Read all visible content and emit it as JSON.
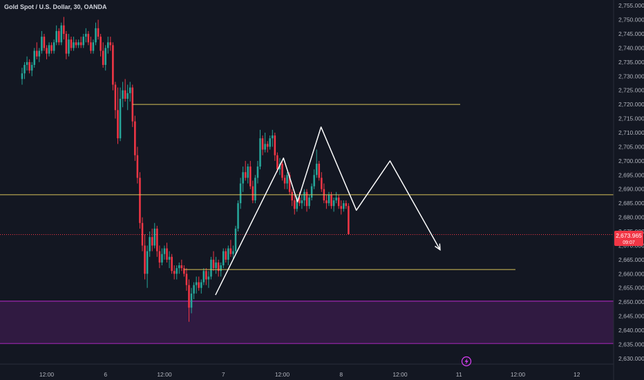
{
  "title": "Gold Spot / U.S. Dollar, 30, OANDA",
  "price_tag": {
    "price": "2,673.965",
    "countdown": "09:07"
  },
  "chart_data": {
    "type": "candlestick",
    "ylim": [
      2628,
      2757
    ],
    "y_ticks": [
      {
        "v": 2755,
        "label": "2,755.000"
      },
      {
        "v": 2750,
        "label": "2,750.000"
      },
      {
        "v": 2745,
        "label": "2,745.000"
      },
      {
        "v": 2740,
        "label": "2,740.000"
      },
      {
        "v": 2735,
        "label": "2,735.000"
      },
      {
        "v": 2730,
        "label": "2,730.000"
      },
      {
        "v": 2725,
        "label": "2,725.000"
      },
      {
        "v": 2720,
        "label": "2,720.000"
      },
      {
        "v": 2715,
        "label": "2,715.000"
      },
      {
        "v": 2710,
        "label": "2,710.000"
      },
      {
        "v": 2705,
        "label": "2,705.000"
      },
      {
        "v": 2700,
        "label": "2,700.000"
      },
      {
        "v": 2695,
        "label": "2,695.000"
      },
      {
        "v": 2690,
        "label": "2,690.000"
      },
      {
        "v": 2685,
        "label": "2,685.000"
      },
      {
        "v": 2680,
        "label": "2,680.000"
      },
      {
        "v": 2675,
        "label": "2,675.000"
      },
      {
        "v": 2670,
        "label": "2,670.000"
      },
      {
        "v": 2665,
        "label": "2,665.000"
      },
      {
        "v": 2660,
        "label": "2,660.000"
      },
      {
        "v": 2655,
        "label": "2,655.000"
      },
      {
        "v": 2650,
        "label": "2,650.000"
      },
      {
        "v": 2645,
        "label": "2,645.000"
      },
      {
        "v": 2640,
        "label": "2,640.000"
      },
      {
        "v": 2635,
        "label": "2,635.000"
      },
      {
        "v": 2630,
        "label": "2,630.000"
      }
    ],
    "x_ticks": [
      {
        "bar": 10,
        "label": "12:00"
      },
      {
        "bar": 34,
        "label": "6"
      },
      {
        "bar": 58,
        "label": "12:00"
      },
      {
        "bar": 82,
        "label": "7"
      },
      {
        "bar": 106,
        "label": "12:00"
      },
      {
        "bar": 130,
        "label": "8"
      },
      {
        "bar": 154,
        "label": "12:00"
      },
      {
        "bar": 178,
        "label": "11"
      },
      {
        "bar": 202,
        "label": "12:00"
      },
      {
        "bar": 226,
        "label": "12"
      }
    ],
    "x_range_bars": [
      -9,
      241
    ],
    "colors": {
      "up": "#26a69a",
      "down": "#f23645",
      "zone": "#9c27b0",
      "level": "#d8c35a",
      "pattern": "#ffffff",
      "current": "#f23645"
    },
    "candles": [
      [
        2729,
        2733,
        2727,
        2731
      ],
      [
        2731,
        2735,
        2729,
        2734
      ],
      [
        2734,
        2737,
        2732,
        2735
      ],
      [
        2735,
        2736,
        2731,
        2732
      ],
      [
        2732,
        2735,
        2730,
        2734
      ],
      [
        2734,
        2740,
        2733,
        2739
      ],
      [
        2739,
        2742,
        2736,
        2737
      ],
      [
        2737,
        2740,
        2735,
        2739
      ],
      [
        2739,
        2746,
        2738,
        2744
      ],
      [
        2744,
        2745,
        2739,
        2740
      ],
      [
        2740,
        2741,
        2736,
        2738
      ],
      [
        2738,
        2742,
        2737,
        2741
      ],
      [
        2741,
        2742,
        2738,
        2739
      ],
      [
        2739,
        2743,
        2738,
        2742
      ],
      [
        2742,
        2748,
        2741,
        2746
      ],
      [
        2746,
        2747,
        2741,
        2742
      ],
      [
        2742,
        2749,
        2741,
        2748
      ],
      [
        2748,
        2751,
        2743,
        2745
      ],
      [
        2745,
        2746,
        2736,
        2738
      ],
      [
        2738,
        2745,
        2737,
        2743
      ],
      [
        2743,
        2744,
        2739,
        2740
      ],
      [
        2740,
        2744,
        2739,
        2742
      ],
      [
        2742,
        2743,
        2740,
        2741
      ],
      [
        2741,
        2743,
        2740,
        2742
      ],
      [
        2742,
        2744,
        2740,
        2741
      ],
      [
        2741,
        2745,
        2740,
        2744
      ],
      [
        2744,
        2747,
        2742,
        2745
      ],
      [
        2745,
        2746,
        2741,
        2742
      ],
      [
        2742,
        2744,
        2738,
        2739
      ],
      [
        2739,
        2743,
        2738,
        2742
      ],
      [
        2742,
        2749,
        2741,
        2747
      ],
      [
        2747,
        2750,
        2743,
        2744
      ],
      [
        2744,
        2745,
        2737,
        2739
      ],
      [
        2739,
        2742,
        2733,
        2734
      ],
      [
        2734,
        2741,
        2732,
        2740
      ],
      [
        2740,
        2744,
        2738,
        2742
      ],
      [
        2742,
        2744,
        2739,
        2741
      ],
      [
        2741,
        2742,
        2725,
        2727
      ],
      [
        2727,
        2728,
        2715,
        2718
      ],
      [
        2718,
        2726,
        2706,
        2708
      ],
      [
        2708,
        2726,
        2707,
        2722
      ],
      [
        2722,
        2728,
        2719,
        2725
      ],
      [
        2725,
        2729,
        2721,
        2722
      ],
      [
        2722,
        2727,
        2718,
        2724
      ],
      [
        2724,
        2728,
        2721,
        2726
      ],
      [
        2726,
        2727,
        2712,
        2714
      ],
      [
        2714,
        2716,
        2700,
        2702
      ],
      [
        2702,
        2705,
        2692,
        2694
      ],
      [
        2694,
        2696,
        2676,
        2678
      ],
      [
        2678,
        2680,
        2668,
        2670
      ],
      [
        2670,
        2674,
        2658,
        2660
      ],
      [
        2660,
        2670,
        2655,
        2668
      ],
      [
        2668,
        2675,
        2666,
        2673
      ],
      [
        2673,
        2676,
        2668,
        2670
      ],
      [
        2670,
        2678,
        2669,
        2676
      ],
      [
        2676,
        2677,
        2666,
        2668
      ],
      [
        2668,
        2670,
        2662,
        2664
      ],
      [
        2664,
        2669,
        2663,
        2667
      ],
      [
        2667,
        2670,
        2665,
        2669
      ],
      [
        2669,
        2671,
        2664,
        2665
      ],
      [
        2665,
        2668,
        2662,
        2666
      ],
      [
        2666,
        2667,
        2660,
        2661
      ],
      [
        2661,
        2663,
        2658,
        2660
      ],
      [
        2660,
        2663,
        2658,
        2662
      ],
      [
        2662,
        2664,
        2660,
        2663
      ],
      [
        2663,
        2665,
        2661,
        2662
      ],
      [
        2662,
        2663,
        2659,
        2660
      ],
      [
        2660,
        2662,
        2654,
        2656
      ],
      [
        2656,
        2658,
        2643,
        2648
      ],
      [
        2648,
        2655,
        2646,
        2653
      ],
      [
        2653,
        2657,
        2651,
        2656
      ],
      [
        2656,
        2659,
        2653,
        2657
      ],
      [
        2657,
        2659,
        2654,
        2655
      ],
      [
        2655,
        2658,
        2653,
        2657
      ],
      [
        2657,
        2662,
        2656,
        2661
      ],
      [
        2661,
        2662,
        2656,
        2658
      ],
      [
        2658,
        2661,
        2655,
        2659
      ],
      [
        2659,
        2666,
        2658,
        2665
      ],
      [
        2665,
        2668,
        2661,
        2662
      ],
      [
        2662,
        2666,
        2660,
        2664
      ],
      [
        2664,
        2665,
        2659,
        2661
      ],
      [
        2661,
        2664,
        2659,
        2663
      ],
      [
        2663,
        2669,
        2662,
        2668
      ],
      [
        2668,
        2669,
        2664,
        2665
      ],
      [
        2665,
        2670,
        2663,
        2669
      ],
      [
        2669,
        2672,
        2666,
        2667
      ],
      [
        2667,
        2670,
        2665,
        2668
      ],
      [
        2668,
        2677,
        2667,
        2676
      ],
      [
        2676,
        2686,
        2675,
        2685
      ],
      [
        2685,
        2694,
        2683,
        2692
      ],
      [
        2692,
        2698,
        2689,
        2696
      ],
      [
        2696,
        2700,
        2693,
        2694
      ],
      [
        2694,
        2699,
        2692,
        2698
      ],
      [
        2698,
        2700,
        2690,
        2691
      ],
      [
        2691,
        2693,
        2685,
        2686
      ],
      [
        2686,
        2695,
        2685,
        2694
      ],
      [
        2694,
        2700,
        2692,
        2698
      ],
      [
        2698,
        2711,
        2697,
        2708
      ],
      [
        2708,
        2709,
        2702,
        2704
      ],
      [
        2704,
        2710,
        2703,
        2706
      ],
      [
        2706,
        2707,
        2703,
        2705
      ],
      [
        2705,
        2709,
        2704,
        2708
      ],
      [
        2708,
        2711,
        2705,
        2709
      ],
      [
        2709,
        2710,
        2700,
        2702
      ],
      [
        2702,
        2703,
        2696,
        2697
      ],
      [
        2697,
        2701,
        2695,
        2699
      ],
      [
        2699,
        2700,
        2693,
        2694
      ],
      [
        2694,
        2695,
        2690,
        2692
      ],
      [
        2692,
        2696,
        2690,
        2695
      ],
      [
        2695,
        2696,
        2688,
        2689
      ],
      [
        2689,
        2690,
        2684,
        2686
      ],
      [
        2686,
        2688,
        2681,
        2683
      ],
      [
        2683,
        2688,
        2682,
        2687
      ],
      [
        2687,
        2689,
        2684,
        2685
      ],
      [
        2685,
        2688,
        2683,
        2686
      ],
      [
        2686,
        2690,
        2684,
        2689
      ],
      [
        2689,
        2690,
        2682,
        2684
      ],
      [
        2684,
        2688,
        2683,
        2687
      ],
      [
        2687,
        2692,
        2686,
        2691
      ],
      [
        2691,
        2697,
        2690,
        2695
      ],
      [
        2695,
        2704,
        2694,
        2699
      ],
      [
        2699,
        2700,
        2693,
        2694
      ],
      [
        2694,
        2696,
        2689,
        2690
      ],
      [
        2690,
        2692,
        2685,
        2686
      ],
      [
        2686,
        2688,
        2683,
        2685
      ],
      [
        2685,
        2689,
        2684,
        2688
      ],
      [
        2688,
        2689,
        2683,
        2684
      ],
      [
        2684,
        2687,
        2682,
        2686
      ],
      [
        2686,
        2689,
        2685,
        2687
      ],
      [
        2687,
        2688,
        2683,
        2684
      ],
      [
        2684,
        2686,
        2681,
        2683
      ],
      [
        2683,
        2686,
        2682,
        2685
      ],
      [
        2685,
        2686,
        2683,
        2684
      ],
      [
        2684,
        2685,
        2674,
        2674
      ]
    ],
    "annotations": {
      "zone": {
        "top": 2650.3,
        "bottom": 2635.3
      },
      "hlines": [
        {
          "y": 2720.0,
          "from_bar": 45,
          "to_bar": 178.5
        },
        {
          "y": 2688.0,
          "from_bar": -9,
          "to_bar": 241
        },
        {
          "y": 2661.5,
          "from_bar": 66,
          "to_bar": 201
        },
        {
          "y": 2673.9,
          "from_bar": -9,
          "to_bar": 241,
          "kind": "current"
        }
      ],
      "pattern": [
        {
          "bar": 78.8,
          "y": 2652.5
        },
        {
          "bar": 106.5,
          "y": 2701.0
        },
        {
          "bar": 112.2,
          "y": 2685.5
        },
        {
          "bar": 121.8,
          "y": 2712.0
        },
        {
          "bar": 136.2,
          "y": 2682.5
        },
        {
          "bar": 149.9,
          "y": 2700.0
        },
        {
          "bar": 170.3,
          "y": 2668.5
        }
      ]
    }
  }
}
